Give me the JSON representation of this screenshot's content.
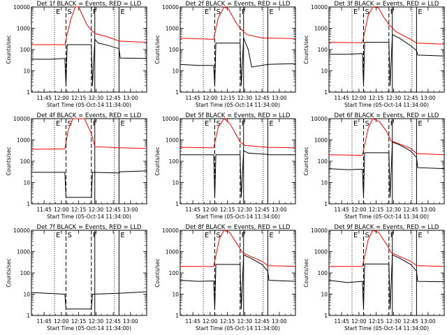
{
  "chart_data": {
    "type": "line",
    "layout": "3x3 grid",
    "y_scale": "log",
    "ylim": [
      1,
      10000
    ],
    "y_ticks": [
      "1",
      "10",
      "100",
      "1000",
      "10000"
    ],
    "ylabel": "Counts/sec",
    "xlabel": "Start Time (05-Oct-14 11:34:00)",
    "x_range": [
      "11:34",
      "13:14"
    ],
    "x_ticks": [
      "11:45",
      "12:00",
      "12:15",
      "12:30",
      "12:45",
      "13:00"
    ],
    "series_colors": {
      "events": "#000000",
      "lld": "#ff0000"
    },
    "markers": {
      "dotted_times": [
        "11:54",
        "12:46"
      ],
      "dashed_times": [
        "12:04",
        "12:26"
      ],
      "solid_times": [
        "12:29",
        "12:50"
      ]
    },
    "panels": [
      {
        "title": "Det 1f BLACK = Events, RED = LLD",
        "labels": [
          "E",
          "S",
          "F",
          "E"
        ],
        "events": [
          [
            "11:34",
            35
          ],
          [
            "11:50",
            35
          ],
          [
            "12:03",
            38
          ],
          [
            "12:04",
            2
          ],
          [
            "12:05",
            170
          ],
          [
            "12:26",
            170
          ],
          [
            "12:27",
            2
          ],
          [
            "12:29",
            300
          ],
          [
            "12:32",
            200
          ],
          [
            "12:40",
            160
          ],
          [
            "12:50",
            110
          ],
          [
            "12:51",
            40
          ],
          [
            "13:14",
            38
          ]
        ],
        "lld": [
          [
            "11:34",
            170
          ],
          [
            "12:03",
            170
          ],
          [
            "12:08",
            2500
          ],
          [
            "12:12",
            10000
          ],
          [
            "12:15",
            10000
          ],
          [
            "12:22",
            1500
          ],
          [
            "12:26",
            800
          ],
          [
            "12:30",
            550
          ],
          [
            "12:40",
            400
          ],
          [
            "12:50",
            250
          ],
          [
            "13:14",
            220
          ]
        ]
      },
      {
        "title": "Det 2f BLACK = Events, RED = LLD",
        "labels": [
          "E",
          "S",
          "F",
          "E"
        ],
        "events": [
          [
            "11:34",
            20
          ],
          [
            "11:50",
            18
          ],
          [
            "12:03",
            18
          ],
          [
            "12:04",
            2
          ],
          [
            "12:05",
            200
          ],
          [
            "12:26",
            200
          ],
          [
            "12:27",
            2
          ],
          [
            "12:29",
            350
          ],
          [
            "12:33",
            100
          ],
          [
            "12:36",
            15
          ],
          [
            "12:50",
            20
          ],
          [
            "13:14",
            22
          ]
        ],
        "lld": [
          [
            "11:34",
            340
          ],
          [
            "12:03",
            300
          ],
          [
            "12:07",
            3000
          ],
          [
            "12:12",
            10000
          ],
          [
            "12:16",
            8000
          ],
          [
            "12:22",
            2000
          ],
          [
            "12:26",
            1000
          ],
          [
            "12:32",
            500
          ],
          [
            "12:45",
            350
          ],
          [
            "13:14",
            330
          ]
        ]
      },
      {
        "title": "Det 3f BLACK = Events, RED = LLD",
        "labels": [
          "E",
          "S",
          "F",
          "E"
        ],
        "events": [
          [
            "11:34",
            60
          ],
          [
            "11:50",
            60
          ],
          [
            "12:03",
            65
          ],
          [
            "12:04",
            2
          ],
          [
            "12:05",
            220
          ],
          [
            "12:26",
            220
          ],
          [
            "12:27",
            2
          ],
          [
            "12:29",
            500
          ],
          [
            "12:35",
            350
          ],
          [
            "12:45",
            150
          ],
          [
            "12:50",
            90
          ],
          [
            "12:51",
            55
          ],
          [
            "13:14",
            50
          ]
        ],
        "lld": [
          [
            "11:34",
            220
          ],
          [
            "12:03",
            210
          ],
          [
            "12:08",
            4000
          ],
          [
            "12:12",
            10000
          ],
          [
            "12:17",
            9000
          ],
          [
            "12:22",
            3000
          ],
          [
            "12:26",
            1500
          ],
          [
            "12:32",
            700
          ],
          [
            "12:45",
            300
          ],
          [
            "12:50",
            200
          ],
          [
            "13:14",
            180
          ]
        ]
      },
      {
        "title": "Det 4f BLACK = Events, RED = LLD",
        "labels": [
          "E",
          "S",
          "F",
          "E"
        ],
        "events": [
          [
            "11:34",
            30
          ],
          [
            "12:03",
            30
          ],
          [
            "12:04",
            2
          ],
          [
            "12:26",
            2
          ],
          [
            "12:27",
            30
          ],
          [
            "12:50",
            28
          ],
          [
            "12:51",
            32
          ],
          [
            "13:14",
            35
          ]
        ],
        "lld": [
          [
            "11:34",
            360
          ],
          [
            "12:03",
            380
          ],
          [
            "12:06",
            3000
          ],
          [
            "12:10",
            10000
          ],
          [
            "12:20",
            10000
          ],
          [
            "12:26",
            2000
          ],
          [
            "12:29",
            480
          ],
          [
            "12:50",
            430
          ],
          [
            "13:14",
            400
          ]
        ]
      },
      {
        "title": "Det 5f BLACK = Events, RED = LLD",
        "labels": [
          "E",
          "S",
          "F",
          "E"
        ],
        "events": [
          [
            "11:34",
            200
          ],
          [
            "12:03",
            200
          ],
          [
            "12:04",
            2
          ],
          [
            "12:05",
            200
          ],
          [
            "12:26",
            200
          ],
          [
            "12:27",
            2
          ],
          [
            "12:29",
            320
          ],
          [
            "12:33",
            240
          ],
          [
            "12:50",
            210
          ],
          [
            "12:51",
            200
          ],
          [
            "13:14",
            200
          ]
        ],
        "lld": [
          [
            "11:34",
            450
          ],
          [
            "12:03",
            430
          ],
          [
            "12:07",
            4000
          ],
          [
            "12:12",
            10000
          ],
          [
            "12:17",
            6000
          ],
          [
            "12:22",
            2000
          ],
          [
            "12:26",
            800
          ],
          [
            "12:30",
            550
          ],
          [
            "12:50",
            450
          ],
          [
            "13:14",
            430
          ]
        ]
      },
      {
        "title": "Det 6f BLACK = Events, RED = LLD",
        "labels": [
          "E",
          "S",
          "F",
          "E"
        ],
        "events": [
          [
            "11:34",
            45
          ],
          [
            "11:50",
            40
          ],
          [
            "12:03",
            42
          ],
          [
            "12:04",
            2
          ],
          [
            "12:05",
            250
          ],
          [
            "12:26",
            250
          ],
          [
            "12:27",
            2
          ],
          [
            "12:29",
            800
          ],
          [
            "12:35",
            600
          ],
          [
            "12:45",
            300
          ],
          [
            "12:50",
            150
          ],
          [
            "12:51",
            50
          ],
          [
            "13:14",
            45
          ]
        ],
        "lld": [
          [
            "11:34",
            200
          ],
          [
            "12:03",
            190
          ],
          [
            "12:08",
            3500
          ],
          [
            "12:12",
            10000
          ],
          [
            "12:18",
            7000
          ],
          [
            "12:24",
            2500
          ],
          [
            "12:28",
            900
          ],
          [
            "12:35",
            650
          ],
          [
            "12:45",
            400
          ],
          [
            "12:50",
            230
          ],
          [
            "13:14",
            200
          ]
        ]
      },
      {
        "title": "Det 7f BLACK = Events, RED = LLD",
        "labels": [
          "E",
          "S",
          "F",
          "E"
        ],
        "events": [
          [
            "11:34",
            12
          ],
          [
            "12:03",
            10
          ],
          [
            "12:04",
            2
          ],
          [
            "12:26",
            2
          ],
          [
            "12:27",
            10
          ],
          [
            "12:50",
            11
          ],
          [
            "13:14",
            13
          ]
        ],
        "lld": []
      },
      {
        "title": "Det 8f BLACK = Events, RED = LLD",
        "labels": [
          "E",
          "S",
          "F",
          "E"
        ],
        "events": [
          [
            "11:34",
            45
          ],
          [
            "11:50",
            40
          ],
          [
            "12:03",
            42
          ],
          [
            "12:04",
            2
          ],
          [
            "12:05",
            250
          ],
          [
            "12:26",
            250
          ],
          [
            "12:27",
            2
          ],
          [
            "12:29",
            700
          ],
          [
            "12:35",
            500
          ],
          [
            "12:45",
            250
          ],
          [
            "12:50",
            120
          ],
          [
            "12:51",
            45
          ],
          [
            "13:14",
            40
          ]
        ],
        "lld": [
          [
            "11:34",
            200
          ],
          [
            "12:03",
            200
          ],
          [
            "12:08",
            4000
          ],
          [
            "12:12",
            10000
          ],
          [
            "12:17",
            8000
          ],
          [
            "12:24",
            2000
          ],
          [
            "12:28",
            900
          ],
          [
            "12:35",
            600
          ],
          [
            "12:45",
            350
          ],
          [
            "12:50",
            220
          ],
          [
            "13:14",
            200
          ]
        ]
      },
      {
        "title": "Det 9f BLACK = Events, RED = LLD",
        "labels": [
          "E",
          "S",
          "F",
          "E"
        ],
        "events": [
          [
            "11:34",
            45
          ],
          [
            "11:50",
            35
          ],
          [
            "12:03",
            40
          ],
          [
            "12:04",
            2
          ],
          [
            "12:05",
            260
          ],
          [
            "12:26",
            260
          ],
          [
            "12:27",
            2
          ],
          [
            "12:29",
            700
          ],
          [
            "12:35",
            500
          ],
          [
            "12:45",
            250
          ],
          [
            "12:50",
            120
          ],
          [
            "12:51",
            40
          ],
          [
            "13:14",
            38
          ]
        ],
        "lld": [
          [
            "11:34",
            200
          ],
          [
            "12:03",
            200
          ],
          [
            "12:08",
            3500
          ],
          [
            "12:12",
            10000
          ],
          [
            "12:17",
            8000
          ],
          [
            "12:24",
            2200
          ],
          [
            "12:28",
            900
          ],
          [
            "12:35",
            600
          ],
          [
            "12:45",
            350
          ],
          [
            "12:50",
            220
          ],
          [
            "13:14",
            200
          ]
        ]
      }
    ]
  }
}
